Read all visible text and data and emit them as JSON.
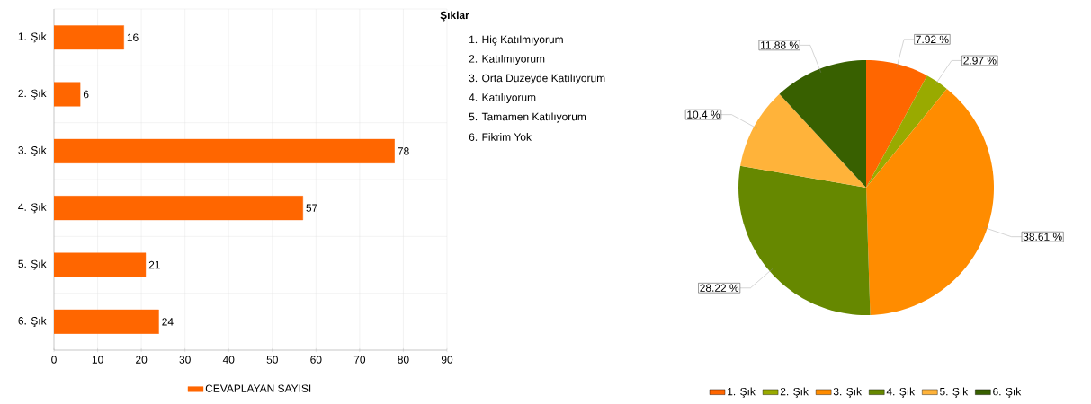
{
  "chart_data": [
    {
      "type": "bar",
      "orientation": "horizontal",
      "categories": [
        "1. Şık",
        "2. Şık",
        "3. Şık",
        "4. Şık",
        "5. Şık",
        "6. Şık"
      ],
      "series": [
        {
          "name": "CEVAPLAYAN SAYISI",
          "color": "#ff6600",
          "values": [
            16,
            6,
            78,
            57,
            21,
            24
          ]
        }
      ],
      "xlim": [
        0,
        90
      ],
      "xticks": [
        0,
        10,
        20,
        30,
        40,
        50,
        60,
        70,
        80,
        90
      ],
      "grid": true,
      "legend": "bottom",
      "data_labels": true
    },
    {
      "type": "other",
      "title": "Şıklar",
      "annotations": [
        "1. Hiç Katılmıyorum",
        "2. Katılmıyorum",
        "3. Orta Düzeyde Katılıyorum",
        "4. Katılıyorum",
        "5. Tamamen Katılıyorum",
        "6. Fikrim Yok"
      ]
    },
    {
      "type": "pie",
      "categories": [
        "1. Şık",
        "2. Şık",
        "3. Şık",
        "4. Şık",
        "5. Şık",
        "6. Şık"
      ],
      "values": [
        7.92,
        2.97,
        38.61,
        28.22,
        10.4,
        11.88
      ],
      "value_labels": [
        "7.92 %",
        "2.97 %",
        "38.61 %",
        "28.22 %",
        "10.4 %",
        "11.88 %"
      ],
      "colors": [
        "#ff6600",
        "#99aa00",
        "#ff8c00",
        "#668800",
        "#ffb33a",
        "#386000"
      ],
      "legend": "bottom"
    }
  ]
}
